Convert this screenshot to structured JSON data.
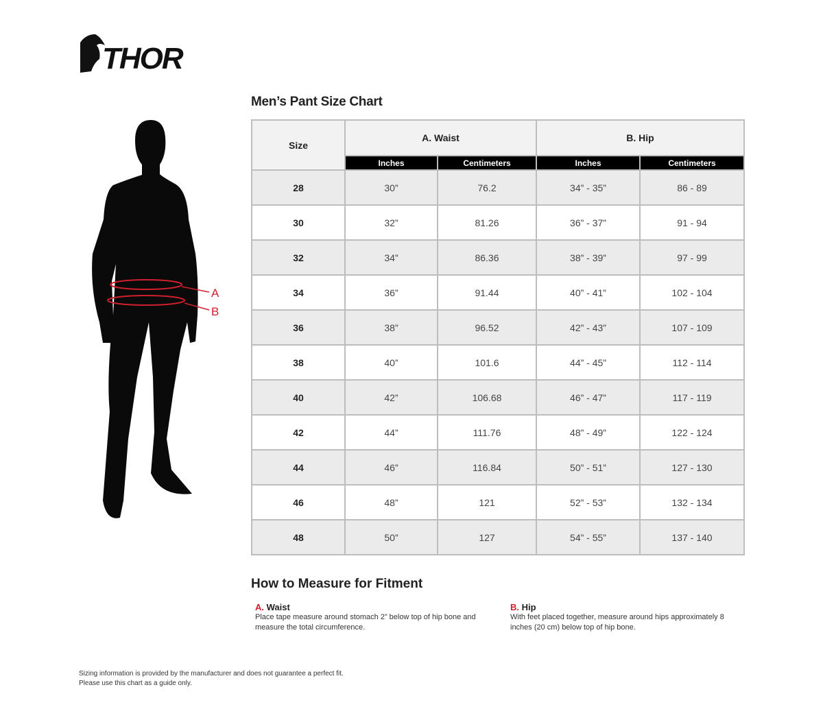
{
  "brand": {
    "logo_text": "THOR"
  },
  "figure": {
    "labels": [
      "A",
      "B"
    ],
    "accent": "#d0202e"
  },
  "chart": {
    "title": "Men’s Pant Size Chart",
    "headers": {
      "size": "Size",
      "waist": "A. Waist",
      "hip": "B. Hip",
      "inches": "Inches",
      "cm": "Centimeters"
    },
    "rows": [
      [
        "28",
        "30”",
        "76.2",
        "34” - 35”",
        "86 - 89"
      ],
      [
        "30",
        "32”",
        "81.26",
        "36” - 37”",
        "91 - 94"
      ],
      [
        "32",
        "34”",
        "86.36",
        "38” - 39”",
        "97 - 99"
      ],
      [
        "34",
        "36”",
        "91.44",
        "40” - 41”",
        "102 - 104"
      ],
      [
        "36",
        "38”",
        "96.52",
        "42” - 43”",
        "107 - 109"
      ],
      [
        "38",
        "40”",
        "101.6",
        "44” - 45”",
        "112 - 114"
      ],
      [
        "40",
        "42”",
        "106.68",
        "46” - 47”",
        "117 - 119"
      ],
      [
        "42",
        "44”",
        "111.76",
        "48” - 49”",
        "122 - 124"
      ],
      [
        "44",
        "46”",
        "116.84",
        "50” - 51”",
        "127 - 130"
      ],
      [
        "46",
        "48”",
        "121",
        "52” - 53”",
        "132 - 134"
      ],
      [
        "48",
        "50”",
        "127",
        "54” - 55”",
        "137 - 140"
      ]
    ]
  },
  "measure": {
    "title": "How to Measure for Fitment",
    "waist": {
      "letter": "A.",
      "label": "Waist",
      "text": "Place tape measure around stomach 2” below top of hip bone and measure the total circumference."
    },
    "hip": {
      "letter": "B.",
      "label": "Hip",
      "text": "With feet placed together, measure around hips approximately 8 inches (20 cm) below top of hip bone."
    }
  },
  "disclaimer": {
    "line1": "Sizing information is provided by the manufacturer and does not guarantee a perfect fit.",
    "line2": "Please use this chart as a guide only."
  }
}
